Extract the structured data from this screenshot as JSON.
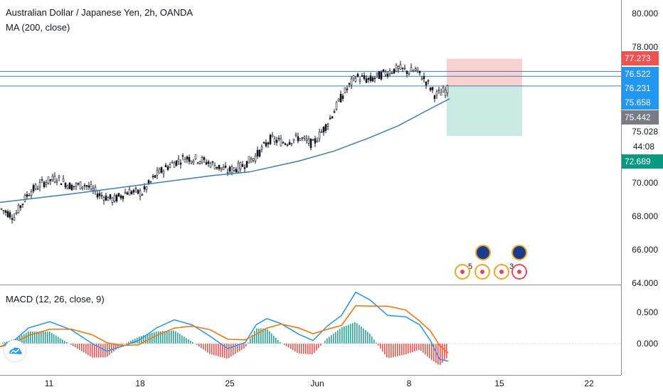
{
  "header": {
    "symbol_line": "Australian Dollar / Japanese Yen, 2h, OANDA",
    "ma_label": "MA (200, close)",
    "macd_label": "MACD (12, 26, close, 9)"
  },
  "price_axis": {
    "ticks": [
      "80.000",
      "78.000",
      "75.028",
      "70.000",
      "68.000",
      "66.000",
      "64.000"
    ],
    "tags": {
      "stop": {
        "value": "77.273",
        "color": "#f0524f"
      },
      "level_upper": {
        "value": "76.522",
        "color": "#2196f3"
      },
      "level_lower": {
        "value": "76.231",
        "color": "#2196f3"
      },
      "entry": {
        "value": "75.658",
        "color": "#2196f3"
      },
      "last": {
        "value": "75.442",
        "color": "#787b86"
      },
      "countdown": "44:08",
      "target": {
        "value": "72.689",
        "color": "#089981"
      }
    }
  },
  "macd_axis": {
    "ticks": [
      "0.500",
      "0.000"
    ]
  },
  "time_axis": {
    "labels": [
      "11",
      "18",
      "25",
      "Jun",
      "8",
      "15",
      "22"
    ]
  },
  "events": {
    "counts": [
      "5",
      "3"
    ]
  },
  "colors": {
    "ma": "#3a7fb3",
    "macd": "#2196f3",
    "signal": "#ff6d00",
    "hist_pos": "#26a69a",
    "hist_neg": "#ef5350",
    "stop_zone": "#f9c9c9",
    "target_zone": "#bfe8df"
  },
  "chart_data": {
    "type": "line",
    "title": "Australian Dollar / Japanese Yen, 2h, OANDA",
    "x_labels": [
      "11",
      "18",
      "25",
      "Jun",
      "8",
      "15",
      "22"
    ],
    "ylim": [
      64,
      80.5
    ],
    "horizontal_levels": [
      76.522,
      76.231,
      75.658
    ],
    "position": {
      "stop": 77.273,
      "entry": 75.658,
      "target": 72.689
    },
    "series": [
      {
        "name": "MA (200, close)",
        "points": [
          [
            0,
            68.75
          ],
          [
            100,
            69.25
          ],
          [
            200,
            69.8
          ],
          [
            300,
            70.35
          ],
          [
            350,
            70.55
          ],
          [
            420,
            71.2
          ],
          [
            470,
            71.8
          ],
          [
            520,
            72.6
          ],
          [
            560,
            73.3
          ],
          [
            600,
            74.2
          ],
          [
            632,
            74.9
          ]
        ]
      },
      {
        "name": "price",
        "points": [
          [
            0,
            68.4
          ],
          [
            20,
            67.9
          ],
          [
            40,
            69.3
          ],
          [
            60,
            69.9
          ],
          [
            80,
            70.2
          ],
          [
            100,
            69.7
          ],
          [
            120,
            69.8
          ],
          [
            140,
            69.2
          ],
          [
            160,
            68.9
          ],
          [
            180,
            69.4
          ],
          [
            200,
            69.3
          ],
          [
            220,
            70.4
          ],
          [
            240,
            71.0
          ],
          [
            260,
            71.4
          ],
          [
            280,
            71.3
          ],
          [
            300,
            71.0
          ],
          [
            320,
            70.6
          ],
          [
            340,
            70.9
          ],
          [
            360,
            71.5
          ],
          [
            380,
            72.5
          ],
          [
            400,
            72.3
          ],
          [
            420,
            72.6
          ],
          [
            440,
            72.2
          ],
          [
            460,
            73.4
          ],
          [
            480,
            75.0
          ],
          [
            500,
            76.2
          ],
          [
            520,
            76.0
          ],
          [
            540,
            76.4
          ],
          [
            560,
            76.7
          ],
          [
            575,
            76.5
          ],
          [
            585,
            76.6
          ],
          [
            600,
            75.9
          ],
          [
            612,
            75.1
          ],
          [
            630,
            75.44
          ]
        ]
      }
    ],
    "macd_ylim": [
      -0.5,
      1.0
    ]
  }
}
